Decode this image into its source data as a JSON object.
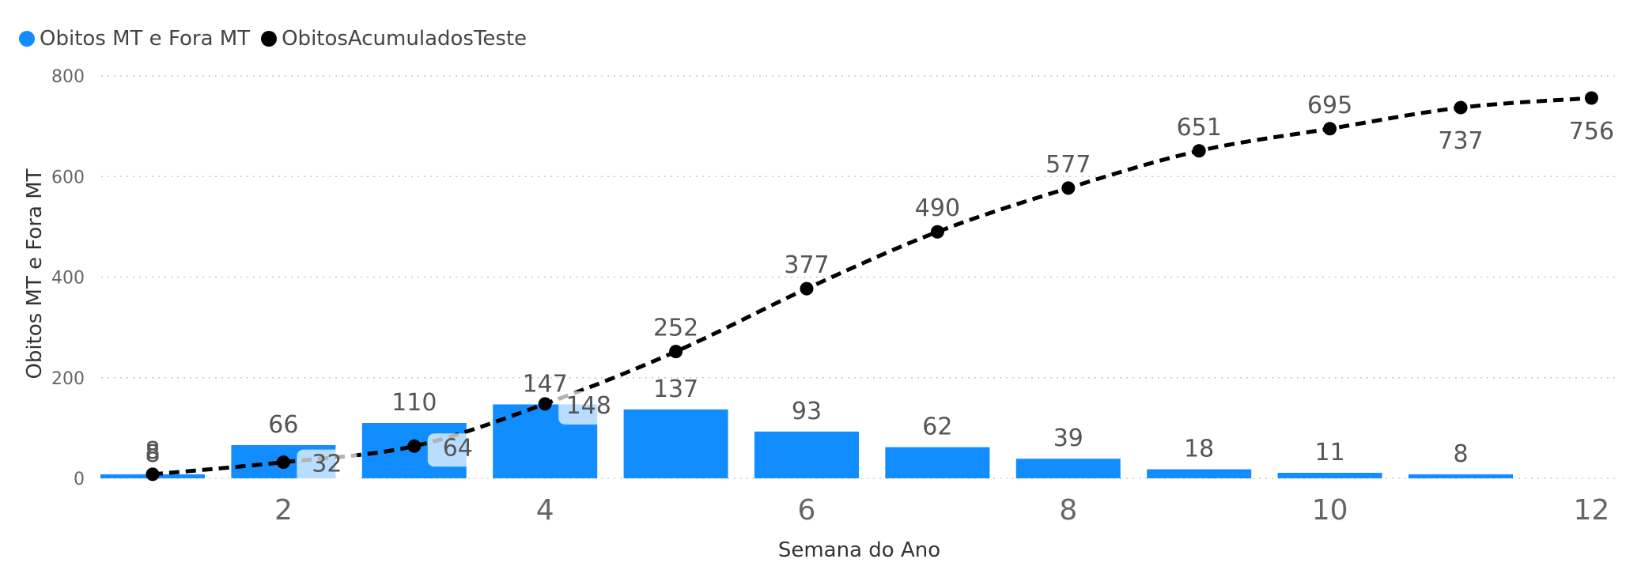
{
  "legend": {
    "bar_series": "Obitos MT e Fora MT",
    "line_series": "ObitosAcumuladosTeste"
  },
  "chart_data": {
    "type": "bar",
    "xlabel": "Semana do Ano",
    "ylabel": "Obitos MT e Fora MT",
    "ylim": [
      0,
      800
    ],
    "yticks": [
      0,
      200,
      400,
      600,
      800
    ],
    "xlim": [
      0.5,
      12
    ],
    "xticks": [
      2,
      4,
      6,
      8,
      10,
      12
    ],
    "grid": true,
    "legend_position": "top-left",
    "colors": {
      "bar": "#118DFF",
      "line": "#000000"
    },
    "series": [
      {
        "name": "Obitos MT e Fora MT",
        "type": "bar",
        "x": [
          1,
          2,
          3,
          4,
          5,
          6,
          7,
          8,
          9,
          10,
          11
        ],
        "values": [
          8,
          66,
          110,
          147,
          137,
          93,
          62,
          39,
          18,
          11,
          8
        ]
      },
      {
        "name": "ObitosAcumuladosTeste",
        "type": "line",
        "style": "dashed",
        "x": [
          1,
          2,
          3,
          4,
          5,
          6,
          7,
          8,
          9,
          10,
          11,
          12
        ],
        "values": [
          8,
          32,
          64,
          148,
          252,
          377,
          490,
          577,
          651,
          695,
          737,
          756
        ]
      }
    ]
  }
}
